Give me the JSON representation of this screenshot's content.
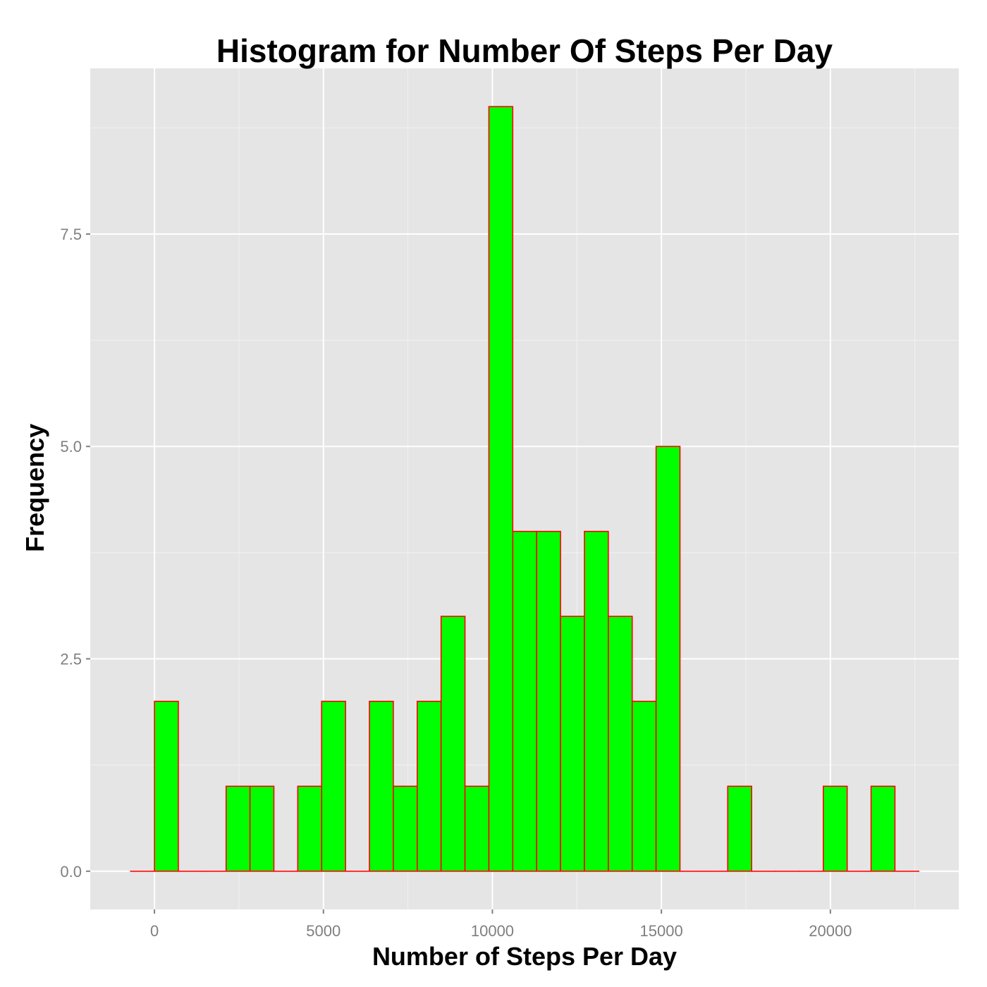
{
  "chart_data": {
    "type": "bar",
    "title": "Histogram for Number Of Steps Per Day",
    "xlabel": "Number of Steps Per Day",
    "ylabel": "Frequency",
    "bin_width": 706.8,
    "bin_start": -706.8,
    "values": [
      0,
      2,
      0,
      0,
      1,
      1,
      0,
      1,
      2,
      0,
      2,
      1,
      2,
      3,
      1,
      9,
      4,
      4,
      3,
      4,
      3,
      2,
      5,
      0,
      0,
      1,
      0,
      0,
      0,
      1,
      0,
      1,
      0
    ],
    "xlim": [
      -1900,
      23800
    ],
    "ylim": [
      -0.45,
      9.45
    ],
    "x_ticks": [
      0,
      5000,
      10000,
      15000,
      20000
    ],
    "x_tick_labels": [
      "0",
      "5000",
      "10000",
      "15000",
      "20000"
    ],
    "y_ticks": [
      0,
      2.5,
      5,
      7.5
    ],
    "y_tick_labels": [
      "0.0",
      "2.5",
      "5.0",
      "7.5"
    ],
    "grid": true,
    "colors": {
      "panel_background": "#e5e5e5",
      "grid_major": "#ffffff",
      "grid_minor": "#f2f2f2",
      "bar_fill": "#00ff00",
      "bar_outline": "#ff0000",
      "tick_label": "#7f7f7f",
      "tick_mark": "#7f7f7f"
    }
  }
}
